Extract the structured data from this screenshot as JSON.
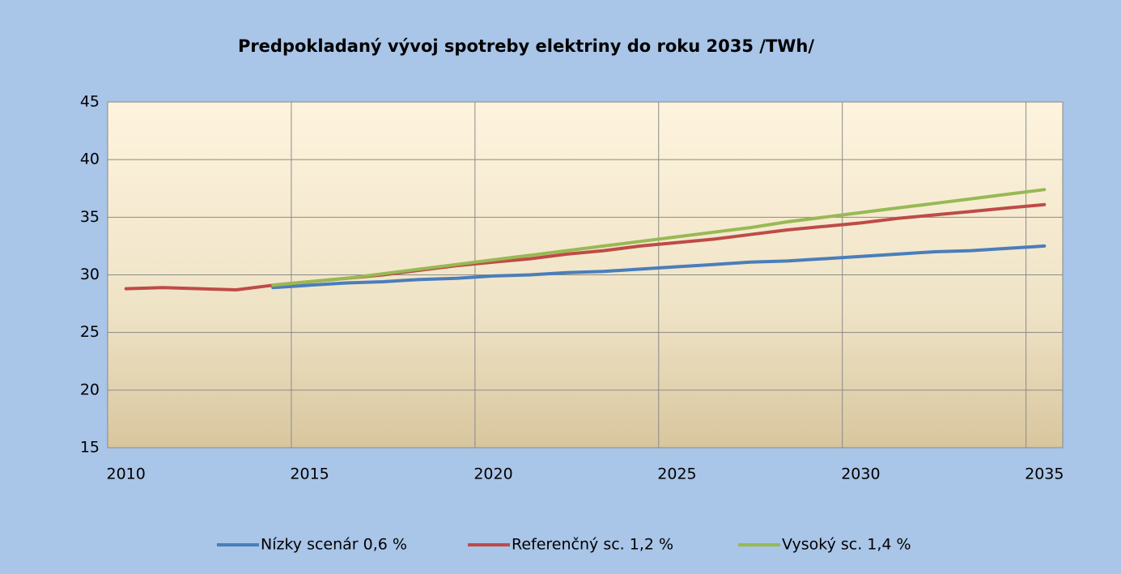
{
  "chart_data": {
    "type": "line",
    "title": "Predpokladaný vývoj spotreby elektriny do roku 2035 /TWh/",
    "categories": [
      "2010",
      null,
      null,
      null,
      null,
      "2015",
      null,
      null,
      null,
      null,
      "2020",
      null,
      null,
      null,
      null,
      "2025",
      null,
      null,
      null,
      null,
      "2030",
      null,
      null,
      null,
      null,
      "2035"
    ],
    "series": [
      {
        "name": "Nízky scenár  0,6 %",
        "color": "#4a7ebb",
        "values": [
          null,
          null,
          null,
          null,
          28.9,
          29.1,
          29.3,
          29.4,
          29.6,
          29.7,
          29.9,
          30.0,
          30.2,
          30.3,
          30.5,
          30.7,
          30.9,
          31.1,
          31.2,
          31.4,
          31.6,
          31.8,
          32.0,
          32.1,
          32.3,
          32.5
        ]
      },
      {
        "name": "Referenčný sc.  1,2 %",
        "color": "#be4b48",
        "values": [
          28.8,
          28.9,
          28.8,
          28.7,
          29.1,
          29.4,
          29.7,
          30.0,
          30.4,
          30.8,
          31.1,
          31.4,
          31.8,
          32.1,
          32.5,
          32.8,
          33.1,
          33.5,
          33.9,
          34.2,
          34.5,
          34.9,
          35.2,
          35.5,
          35.8,
          36.1
        ]
      },
      {
        "name": "Vysoký sc.  1,4 %",
        "color": "#98b954",
        "values": [
          null,
          null,
          null,
          null,
          29.1,
          29.4,
          29.7,
          30.1,
          30.5,
          30.9,
          31.3,
          31.7,
          32.1,
          32.5,
          32.9,
          33.3,
          33.7,
          34.1,
          34.6,
          35.0,
          35.4,
          35.8,
          36.2,
          36.6,
          37.0,
          37.4
        ]
      }
    ],
    "ylim": [
      15,
      45
    ],
    "yticks": [
      15,
      20,
      25,
      30,
      35,
      40,
      45
    ],
    "grid": true,
    "legend": "bottom"
  }
}
